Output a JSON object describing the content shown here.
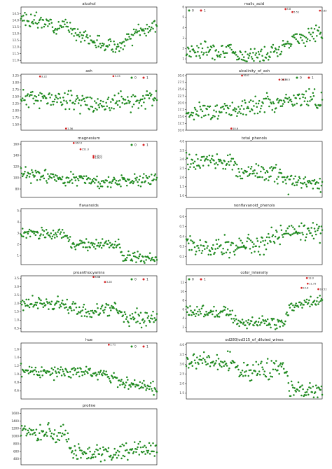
{
  "colors": {
    "normal": "#1f8a1f",
    "outlier": "#d62728",
    "frame": "#000000"
  },
  "chart_data": [
    {
      "type": "scatter",
      "title": "alcohol",
      "xlim": [
        0,
        178
      ],
      "ylim": [
        10.8,
        15.0
      ],
      "yticks": [
        "11.0",
        "11.5",
        "12.0",
        "12.5",
        "13.0",
        "13.5",
        "14.0",
        "14.5"
      ],
      "ytick_values": [
        11.0,
        11.5,
        12.0,
        12.5,
        13.0,
        13.5,
        14.0,
        14.5
      ],
      "legend": null,
      "outliers": [],
      "seed": 3,
      "trend": [
        [
          0,
          14.1
        ],
        [
          0.35,
          13.5
        ],
        [
          0.55,
          12.3
        ],
        [
          0.72,
          12.0
        ],
        [
          0.85,
          13.0
        ],
        [
          1,
          13.6
        ]
      ],
      "noise": 0.4
    },
    {
      "type": "scatter",
      "title": "malic_acid",
      "xlim": [
        0,
        178
      ],
      "ylim": [
        0.6,
        6.0
      ],
      "yticks": [
        "1",
        "2",
        "3",
        "4",
        "5",
        "6"
      ],
      "ytick_values": [
        1,
        2,
        3,
        4,
        5,
        6
      ],
      "legend": {
        "entries": [
          "0",
          "1"
        ],
        "placement": "top-left"
      },
      "outliers": [
        {
          "x": 130,
          "y": 5.8,
          "label": "5.8"
        },
        {
          "x": 139,
          "y": 5.51,
          "label": "5.51"
        },
        {
          "x": 175,
          "y": 5.65,
          "label": "5.65"
        }
      ],
      "seed": 7,
      "trend": [
        [
          0,
          1.8
        ],
        [
          0.3,
          1.9
        ],
        [
          0.35,
          1.4
        ],
        [
          0.55,
          1.3
        ],
        [
          0.7,
          2.2
        ],
        [
          0.8,
          3.0
        ],
        [
          1,
          3.5
        ]
      ],
      "noise": 0.6
    },
    {
      "type": "scatter",
      "title": "ash",
      "xlim": [
        0,
        178
      ],
      "ylim": [
        1.3,
        3.3
      ],
      "yticks": [
        "1.50",
        "1.75",
        "2.00",
        "2.25",
        "2.50",
        "2.75",
        "3.00",
        "3.25"
      ],
      "ytick_values": [
        1.5,
        1.75,
        2.0,
        2.25,
        2.5,
        2.75,
        3.0,
        3.25
      ],
      "legend": {
        "entries": [
          "0",
          "1"
        ],
        "placement": "top-right"
      },
      "outliers": [
        {
          "x": 25,
          "y": 3.22,
          "label": "3.22"
        },
        {
          "x": 121,
          "y": 3.23,
          "label": "3.23"
        },
        {
          "x": 59,
          "y": 1.36,
          "label": "1.36"
        }
      ],
      "seed": 11,
      "trend": [
        [
          0,
          2.45
        ],
        [
          0.35,
          2.4
        ],
        [
          0.6,
          2.2
        ],
        [
          1,
          2.45
        ]
      ],
      "noise": 0.25
    },
    {
      "type": "scatter",
      "title": "alcalinity_of_ash",
      "xlim": [
        0,
        178
      ],
      "ylim": [
        10.0,
        30.5
      ],
      "yticks": [
        "10.0",
        "12.5",
        "15.0",
        "17.5",
        "20.0",
        "22.5",
        "25.0",
        "27.5",
        "30.0"
      ],
      "ytick_values": [
        10,
        12.5,
        15,
        17.5,
        20,
        22.5,
        25,
        27.5,
        30
      ],
      "legend": {
        "entries": [
          "0",
          "1"
        ],
        "placement": "top-right"
      },
      "outliers": [
        {
          "x": 73,
          "y": 30.0,
          "label": "30.0"
        },
        {
          "x": 127,
          "y": 28.5,
          "label": "28.5"
        },
        {
          "x": 122,
          "y": 28.5,
          "label": "28.5"
        },
        {
          "x": 59,
          "y": 10.6,
          "label": "10.6"
        }
      ],
      "seed": 17,
      "trend": [
        [
          0,
          16.5
        ],
        [
          0.35,
          17.5
        ],
        [
          0.6,
          20.5
        ],
        [
          1,
          21.5
        ]
      ],
      "noise": 2.4
    },
    {
      "type": "scatter",
      "title": "magnesium",
      "xlim": [
        0,
        178
      ],
      "ylim": [
        65,
        165
      ],
      "yticks": [
        "80",
        "100",
        "120",
        "140",
        "160"
      ],
      "ytick_values": [
        80,
        100,
        120,
        140,
        160
      ],
      "legend": {
        "entries": [
          "0",
          "1"
        ],
        "placement": "top-right"
      },
      "outliers": [
        {
          "x": 69,
          "y": 162.0,
          "label": "162.0"
        },
        {
          "x": 78,
          "y": 151.0,
          "label": "151.0"
        },
        {
          "x": 95,
          "y": 139.0,
          "label": "139.0"
        },
        {
          "x": 95,
          "y": 136.0,
          "label": "136.0"
        }
      ],
      "seed": 23,
      "trend": [
        [
          0,
          106
        ],
        [
          0.33,
          100
        ],
        [
          0.6,
          92
        ],
        [
          1,
          100
        ]
      ],
      "noise": 9
    },
    {
      "type": "scatter",
      "title": "total_phenols",
      "xlim": [
        0,
        178
      ],
      "ylim": [
        0.9,
        4.0
      ],
      "yticks": [
        "1.0",
        "1.5",
        "2.0",
        "2.5",
        "3.0",
        "3.5",
        "4.0"
      ],
      "ytick_values": [
        1.0,
        1.5,
        2.0,
        2.5,
        3.0,
        3.5,
        4.0
      ],
      "legend": null,
      "outliers": [],
      "seed": 29,
      "trend": [
        [
          0,
          2.9
        ],
        [
          0.33,
          2.8
        ],
        [
          0.4,
          2.3
        ],
        [
          0.7,
          2.2
        ],
        [
          0.75,
          1.7
        ],
        [
          1,
          1.7
        ]
      ],
      "noise": 0.35
    },
    {
      "type": "scatter",
      "title": "flavanoids",
      "xlim": [
        0,
        178
      ],
      "ylim": [
        0.2,
        5.2
      ],
      "yticks": [
        "1",
        "2",
        "3",
        "4",
        "5"
      ],
      "ytick_values": [
        1,
        2,
        3,
        4,
        5
      ],
      "legend": null,
      "outliers": [],
      "seed": 31,
      "trend": [
        [
          0,
          3.0
        ],
        [
          0.33,
          2.9
        ],
        [
          0.38,
          2.0
        ],
        [
          0.72,
          2.0
        ],
        [
          0.75,
          0.8
        ],
        [
          1,
          0.7
        ]
      ],
      "noise": 0.35
    },
    {
      "type": "scatter",
      "title": "nonflavanoid_phenols",
      "xlim": [
        0,
        178
      ],
      "ylim": [
        0.12,
        0.68
      ],
      "yticks": [
        "0.2",
        "0.3",
        "0.4",
        "0.5",
        "0.6"
      ],
      "ytick_values": [
        0.2,
        0.3,
        0.4,
        0.5,
        0.6
      ],
      "legend": null,
      "outliers": [],
      "seed": 37,
      "trend": [
        [
          0,
          0.29
        ],
        [
          0.33,
          0.3
        ],
        [
          0.6,
          0.35
        ],
        [
          0.75,
          0.45
        ],
        [
          1,
          0.47
        ]
      ],
      "noise": 0.08
    },
    {
      "type": "scatter",
      "title": "proanthocyanins",
      "xlim": [
        0,
        178
      ],
      "ylim": [
        0.3,
        3.65
      ],
      "yticks": [
        "0.5",
        "1.0",
        "1.5",
        "2.0",
        "2.5",
        "3.0",
        "3.5"
      ],
      "ytick_values": [
        0.5,
        1.0,
        1.5,
        2.0,
        2.5,
        3.0,
        3.5
      ],
      "legend": {
        "entries": [
          "0",
          "1"
        ],
        "placement": "top-right"
      },
      "outliers": [
        {
          "x": 95,
          "y": 3.58,
          "label": "3.58"
        },
        {
          "x": 110,
          "y": 3.28,
          "label": "3.28"
        }
      ],
      "seed": 41,
      "trend": [
        [
          0,
          2.0
        ],
        [
          0.33,
          1.9
        ],
        [
          0.4,
          1.5
        ],
        [
          0.7,
          1.6
        ],
        [
          0.75,
          1.1
        ],
        [
          1,
          1.2
        ]
      ],
      "noise": 0.35
    },
    {
      "type": "scatter",
      "title": "color_intensity",
      "xlim": [
        0,
        178
      ],
      "ylim": [
        1.0,
        13.5
      ],
      "yticks": [
        "2",
        "4",
        "6",
        "8",
        "10",
        "12"
      ],
      "ytick_values": [
        2,
        4,
        6,
        8,
        10,
        12
      ],
      "legend": {
        "entries": [
          "0",
          "1"
        ],
        "placement": "top-left"
      },
      "outliers": [
        {
          "x": 158,
          "y": 13.0,
          "label": "13.0"
        },
        {
          "x": 159,
          "y": 11.75,
          "label": "11.75"
        },
        {
          "x": 151,
          "y": 10.8,
          "label": "10.8"
        },
        {
          "x": 173,
          "y": 10.52,
          "label": "10.52"
        }
      ],
      "seed": 43,
      "trend": [
        [
          0,
          5.5
        ],
        [
          0.33,
          5.4
        ],
        [
          0.38,
          3.2
        ],
        [
          0.72,
          2.9
        ],
        [
          0.76,
          6.5
        ],
        [
          1,
          8.0
        ]
      ],
      "noise": 1.0
    },
    {
      "type": "scatter",
      "title": "hue",
      "xlim": [
        0,
        178
      ],
      "ylim": [
        0.4,
        1.75
      ],
      "yticks": [
        "0.6",
        "0.8",
        "1.0",
        "1.2",
        "1.4",
        "1.6"
      ],
      "ytick_values": [
        0.6,
        0.8,
        1.0,
        1.2,
        1.4,
        1.6
      ],
      "legend": {
        "entries": [
          "0",
          "1"
        ],
        "placement": "top-right"
      },
      "outliers": [
        {
          "x": 115,
          "y": 1.71,
          "label": "1.71"
        }
      ],
      "seed": 47,
      "trend": [
        [
          0,
          1.07
        ],
        [
          0.33,
          1.05
        ],
        [
          0.6,
          1.05
        ],
        [
          0.72,
          0.85
        ],
        [
          1,
          0.65
        ]
      ],
      "noise": 0.11
    },
    {
      "type": "scatter",
      "title": "od280/od315_of_diluted_wines",
      "xlim": [
        0,
        178
      ],
      "ylim": [
        1.2,
        4.1
      ],
      "yticks": [
        "1.5",
        "2.0",
        "2.5",
        "3.0",
        "3.5",
        "4.0"
      ],
      "ytick_values": [
        1.5,
        2.0,
        2.5,
        3.0,
        3.5,
        4.0
      ],
      "legend": null,
      "outliers": [],
      "seed": 53,
      "trend": [
        [
          0,
          3.2
        ],
        [
          0.33,
          3.1
        ],
        [
          0.4,
          2.6
        ],
        [
          0.72,
          2.8
        ],
        [
          0.76,
          1.7
        ],
        [
          1,
          1.6
        ]
      ],
      "noise": 0.35
    },
    {
      "type": "scatter",
      "title": "proline",
      "xlim": [
        0,
        178
      ],
      "ylim": [
        250,
        1720
      ],
      "yticks": [
        "400",
        "600",
        "800",
        "1000",
        "1200",
        "1400",
        "1600"
      ],
      "ytick_values": [
        400,
        600,
        800,
        1000,
        1200,
        1400,
        1600
      ],
      "legend": null,
      "outliers": [],
      "seed": 59,
      "trend": [
        [
          0,
          1150
        ],
        [
          0.33,
          1050
        ],
        [
          0.38,
          550
        ],
        [
          0.72,
          520
        ],
        [
          0.76,
          600
        ],
        [
          1,
          640
        ]
      ],
      "noise": 180
    }
  ]
}
